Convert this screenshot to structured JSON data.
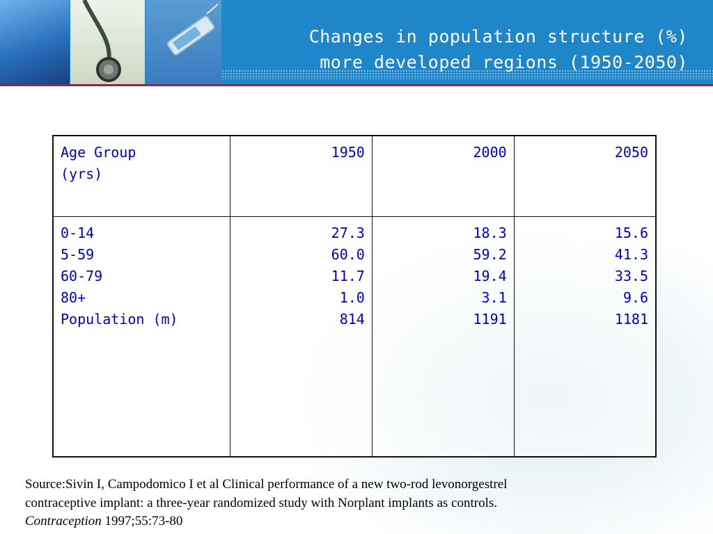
{
  "slide": {
    "title_line1": "Changes in population structure (%)",
    "title_line2": "more developed regions (1950-2050)",
    "header_color": "#1e86c9",
    "accent_rule_color": "#c8102e",
    "table_text_color": "#0000cc"
  },
  "table": {
    "header": {
      "label_line1": "Age Group",
      "label_line2": "(yrs)",
      "years": [
        "1950",
        "2000",
        "2050"
      ]
    },
    "row_labels": [
      "0-14",
      "5-59",
      "60-79",
      "80+",
      "Population (m)"
    ],
    "columns": [
      [
        "27.3",
        "60.0",
        "11.7",
        "1.0",
        "814"
      ],
      [
        "18.3",
        "59.2",
        "19.4",
        "3.1",
        "1191"
      ],
      [
        "15.6",
        "41.3",
        "33.5",
        "9.6",
        "1181"
      ]
    ]
  },
  "source": {
    "line1": "Source:Sivin I, Campodomico I et al Clinical performance of a new two-rod levonorgestrel",
    "line2": "contraceptive implant: a three-year randomized study with Norplant implants as controls.",
    "journal": "Contraception",
    "citation": " 1997;55:73-80"
  }
}
